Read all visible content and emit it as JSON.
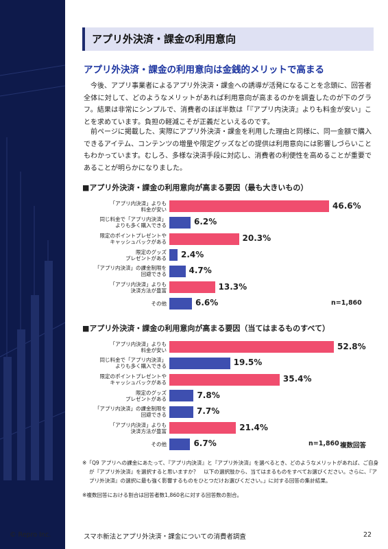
{
  "header": {
    "title": "アプリ外決済・課金の利用意向"
  },
  "subtitle": "アプリ外決済・課金の利用意向は金銭的メリットで高まる",
  "paragraphs": [
    "今後、アプリ事業者によるアプリ外決済・課金への誘導が活発になることを念頭に、回答者全体に対して、どのようなメリットがあれば利用意向が高まるのかを調査したのが下のグラフ。結果は非常にシンプルで、消費者のほぼ半数は「『アプリ内決済』よりも料金が安い」ことを求めています。負担の軽減こそが正義だといえるのです。",
    "前ページに掲載した、実際にアプリ外決済・課金を利用した理由と同様に、同一金額で購入できるアイテム、コンテンツの増量や限定グッズなどの提供は利用意向には影響しづらいこともわかっています。むしろ、多様な決済手段に対応し、消費者の利便性を高めることが重要であることが明らかになりました。"
  ],
  "chart_data": [
    {
      "type": "bar",
      "title": "■アプリ外決済・課金の利用意向が高まる要因（最も大きいもの）",
      "categories": [
        "「アプリ内決済」よりも\n料金が安い",
        "同じ料金で「アプリ内決済」\nよりも多く購入できる",
        "限定のポイントプレゼントや\nキャッシュバックがある",
        "限定のグッズ\nプレゼントがある",
        "「アプリ内決済」の課金制限を\n回避できる",
        "「アプリ内決済」よりも\n決済方法が豊富",
        "その他"
      ],
      "values": [
        46.6,
        6.2,
        20.3,
        2.4,
        4.7,
        13.3,
        6.6
      ],
      "value_labels": [
        "46.6%",
        "6.2%",
        "20.3%",
        "2.4%",
        "4.7%",
        "13.3%",
        "6.6%"
      ],
      "colors": [
        "#f04d6e",
        "#3e4fb0",
        "#f04d6e",
        "#3e4fb0",
        "#3e4fb0",
        "#f04d6e",
        "#3e4fb0"
      ],
      "xlim": [
        0,
        50
      ],
      "notes": [
        "n=1,860"
      ]
    },
    {
      "type": "bar",
      "title": "■アプリ外決済・課金の利用意向が高まる要因（当てはまるものすべて）",
      "categories": [
        "「アプリ内決済」よりも\n料金が安い",
        "同じ料金で「アプリ内決済」\nよりも多く購入できる",
        "限定のポイントプレゼントや\nキャッシュバックがある",
        "限定のグッズ\nプレゼントがある",
        "「アプリ内決済」の課金制限を\n回避できる",
        "「アプリ内決済」よりも\n決済方法が豊富",
        "その他"
      ],
      "values": [
        52.8,
        19.5,
        35.4,
        7.8,
        7.7,
        21.4,
        6.7
      ],
      "value_labels": [
        "52.8%",
        "19.5%",
        "35.4%",
        "7.8%",
        "7.7%",
        "21.4%",
        "6.7%"
      ],
      "colors": [
        "#f04d6e",
        "#3e4fb0",
        "#f04d6e",
        "#3e4fb0",
        "#3e4fb0",
        "#f04d6e",
        "#3e4fb0"
      ],
      "xlim": [
        0,
        55
      ],
      "notes": [
        "n=1,860",
        "複数回答"
      ]
    }
  ],
  "footnotes": [
    "※「Q9 アプリへの課金にあたって、『アプリ内決済』と『アプリ外決済』を選べるとき、どのようなメリットがあれば、ご自身が『アプリ外決済』を選択すると思いますか？　以下の選択肢から、当てはまるものをすべてお選びください。さらに、『アプリ外決済』の選択に最も強く影響するものをひとつだけお選びください。」に対する回答の集計結果。",
    "※複数回答における割合は回答者数1,860名に対する回答数の割合。"
  ],
  "footer": {
    "copyright": "© Repro Inc.",
    "title": "スマホ新法とアプリ外決済・課金についての消費者調査",
    "page": "22"
  }
}
